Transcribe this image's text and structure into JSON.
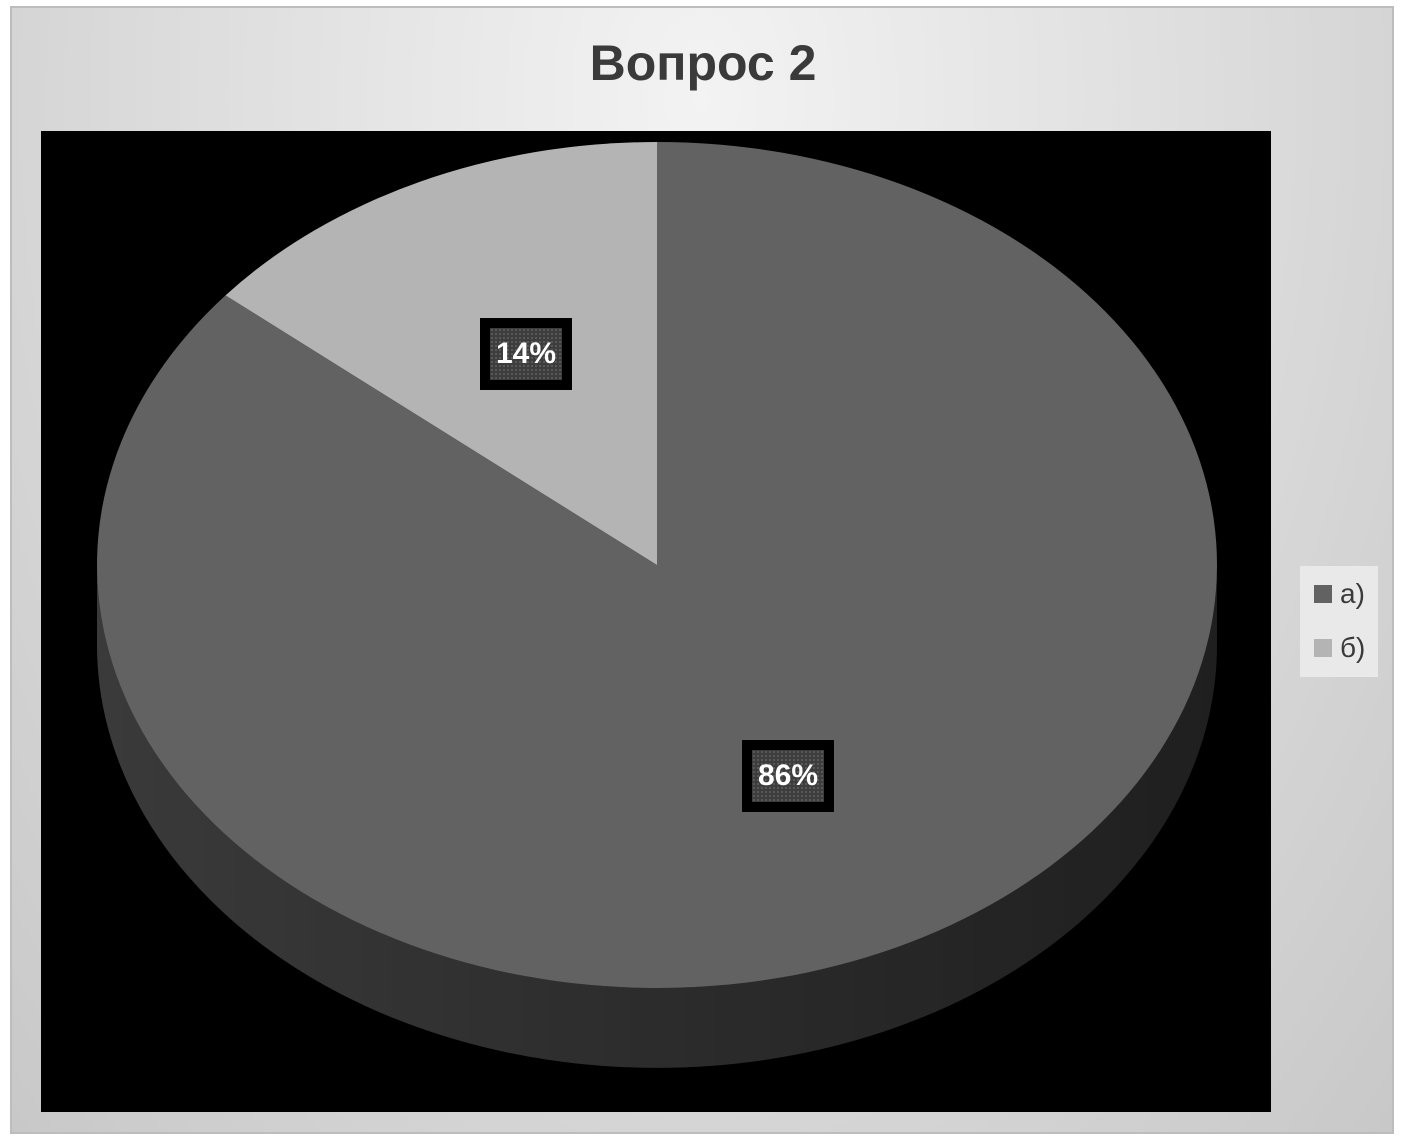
{
  "chart_data": {
    "type": "pie",
    "title": "Вопрос 2",
    "categories": [
      "а)",
      "б)"
    ],
    "values": [
      86,
      14
    ],
    "data_labels": [
      "86%",
      "14%"
    ],
    "colors": [
      "#626262",
      "#b4b4b4"
    ],
    "legend_placement": "right",
    "style": "3d"
  },
  "colors": {
    "plot_background": "#000000",
    "chart_background": "#dcdcdc",
    "title_color": "#3a3a3a"
  }
}
